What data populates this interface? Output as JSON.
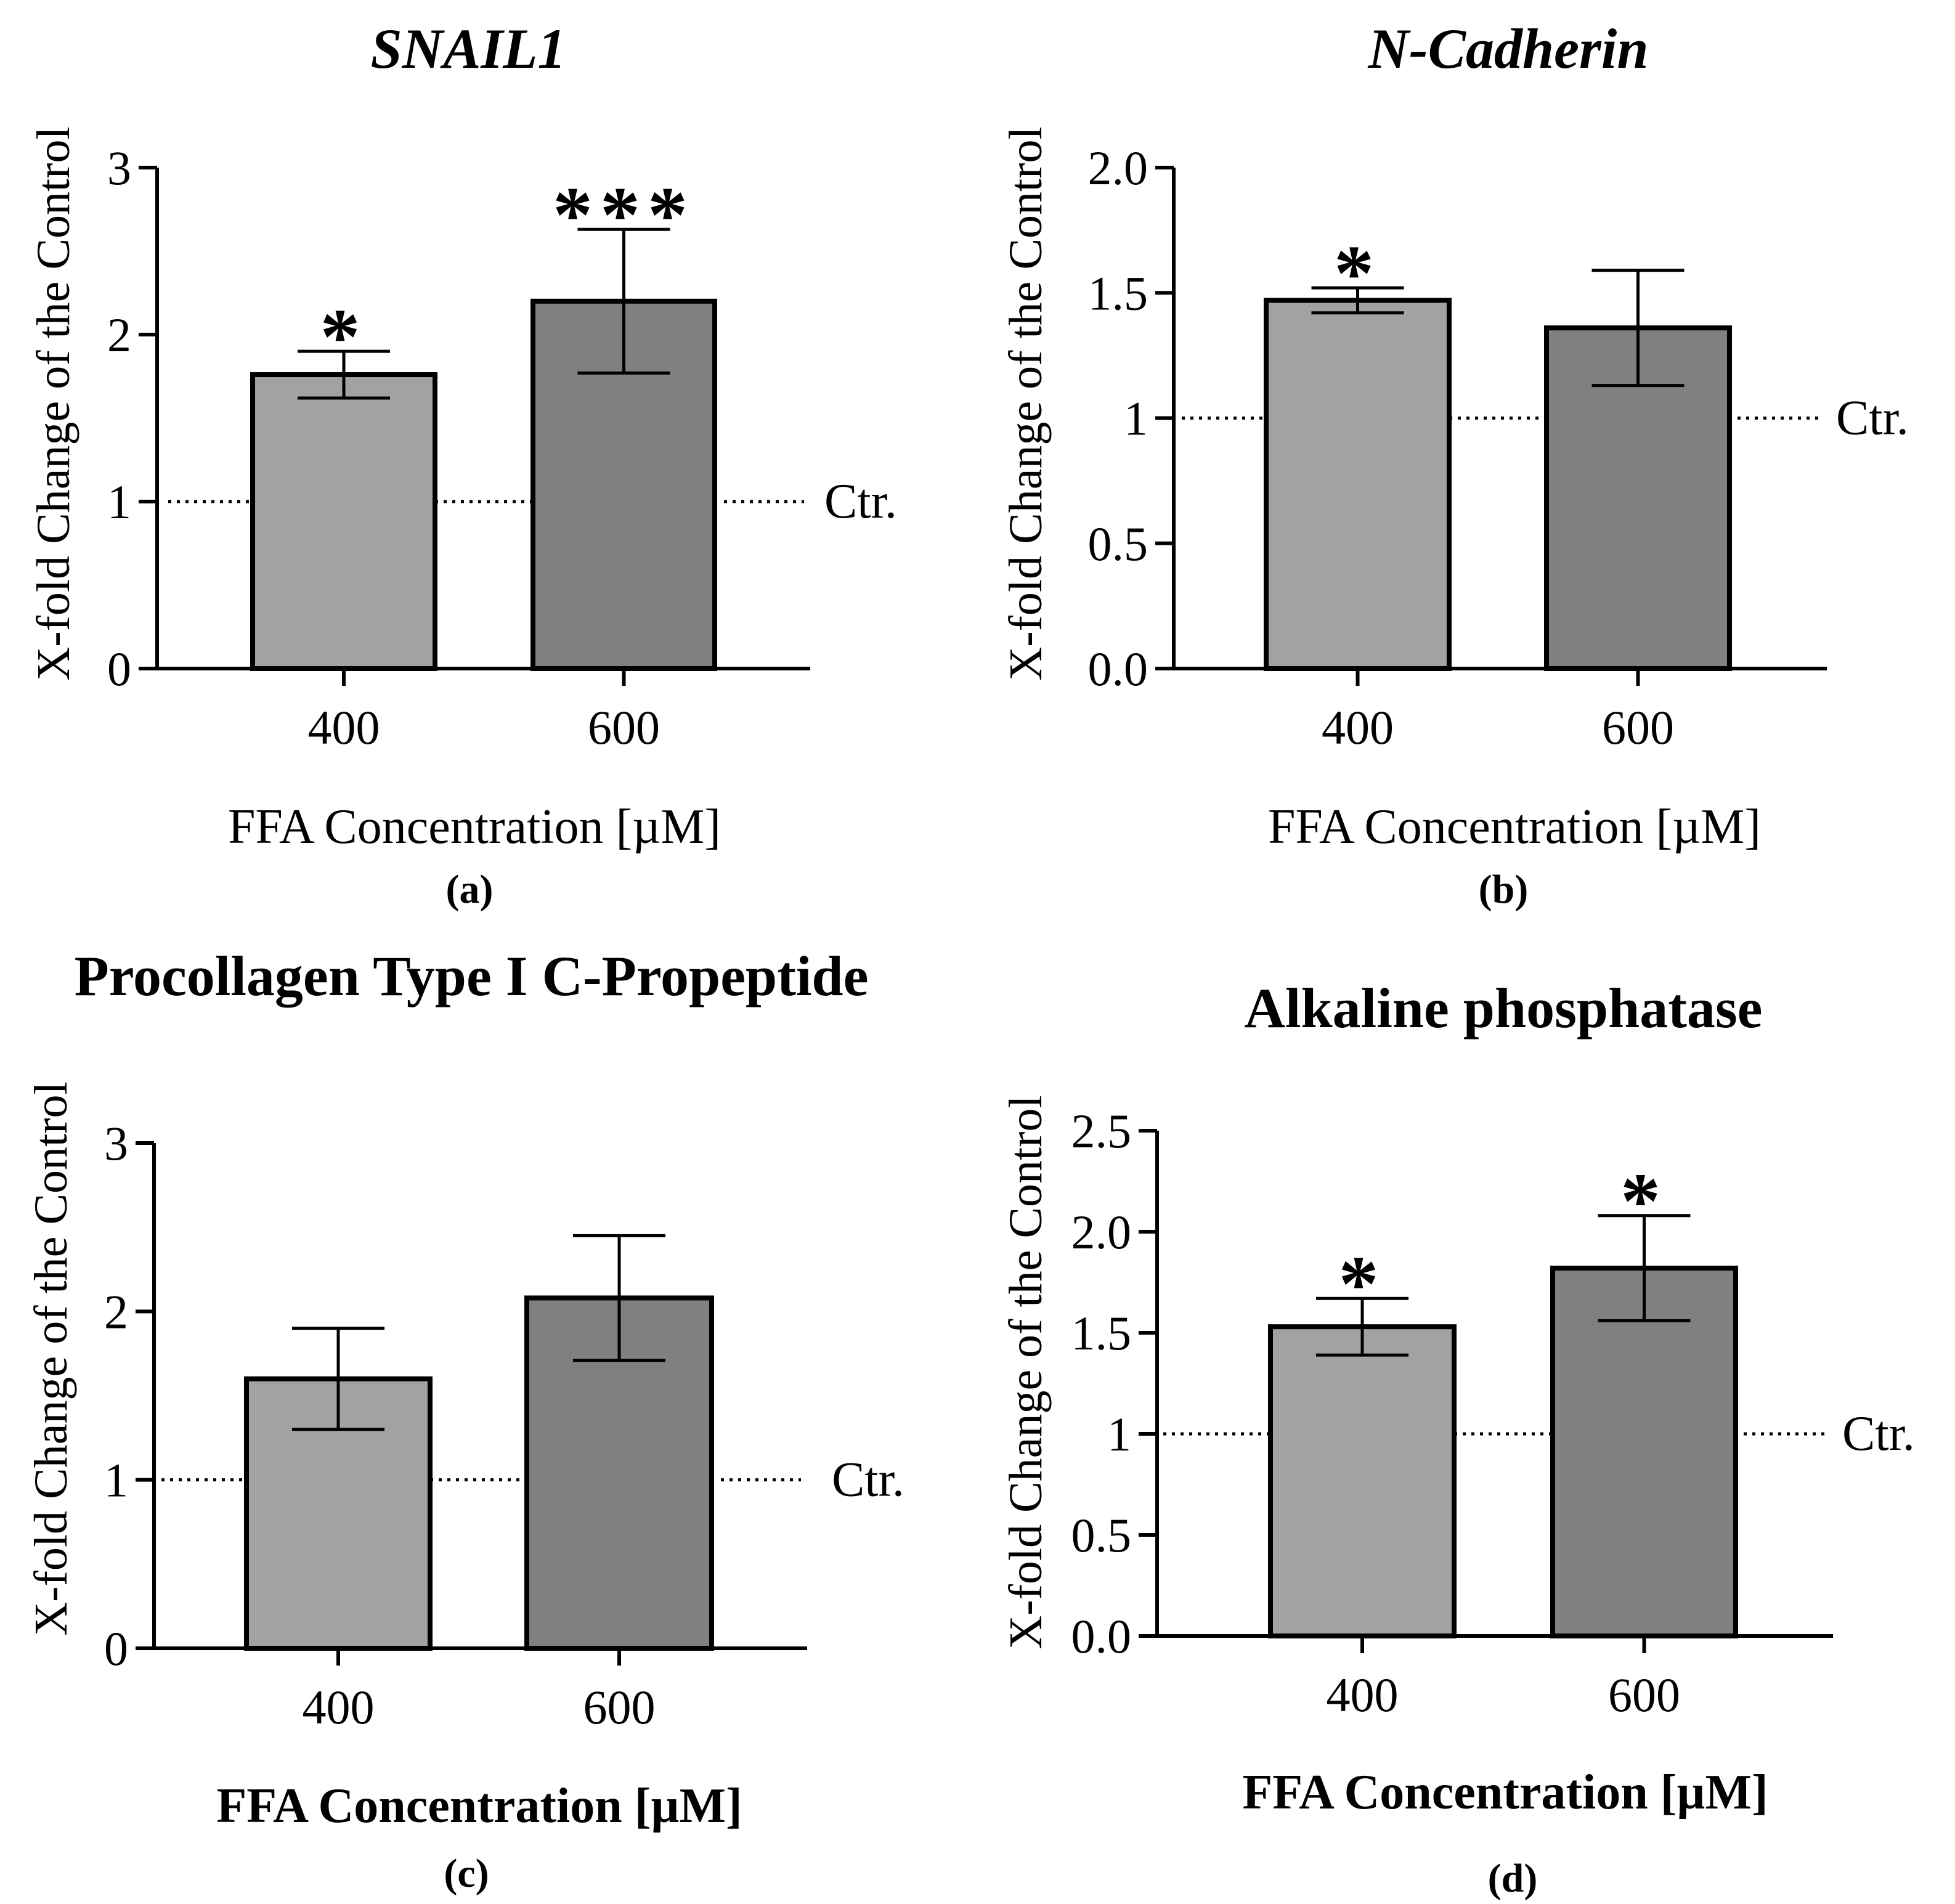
{
  "chart_data": [
    {
      "type": "bar",
      "panel": "(a)",
      "title": "SNAIL1",
      "title_style": "bold-italic",
      "xlabel": "FFA Concentration [µM]",
      "ylabel": "X-fold Change of the Control",
      "categories": [
        "400",
        "600"
      ],
      "values": [
        1.76,
        2.2
      ],
      "errors": [
        0.14,
        0.43
      ],
      "significance": [
        "*",
        "***"
      ],
      "ylim": [
        0,
        3
      ],
      "yticks": [
        0,
        1,
        2,
        3
      ],
      "ytick_labels": [
        "0",
        "1",
        "2",
        "3"
      ],
      "reference_line": {
        "value": 1,
        "label": "Ctr."
      },
      "colors": [
        "#a2a2a2",
        "#808080"
      ]
    },
    {
      "type": "bar",
      "panel": "(b)",
      "title": "N-Cadherin",
      "title_style": "bold-italic",
      "xlabel": "FFA Concentration [µM]",
      "ylabel": "X-fold Change of the Control",
      "categories": [
        "400",
        "600"
      ],
      "values": [
        1.47,
        1.36
      ],
      "errors": [
        0.05,
        0.23
      ],
      "significance": [
        "*",
        ""
      ],
      "ylim": [
        0,
        2
      ],
      "yticks": [
        0,
        0.5,
        1,
        1.5,
        2
      ],
      "ytick_labels": [
        "0.0",
        "0.5",
        "1",
        "1.5",
        "2.0"
      ],
      "reference_line": {
        "value": 1,
        "label": "Ctr."
      },
      "colors": [
        "#a2a2a2",
        "#808080"
      ]
    },
    {
      "type": "bar",
      "panel": "(c)",
      "title": "Procollagen Type I C-Propeptide",
      "title_style": "bold",
      "xlabel": "FFA Concentration [µM]",
      "ylabel": "X-fold Change of the Control",
      "categories": [
        "400",
        "600"
      ],
      "values": [
        1.6,
        2.08
      ],
      "errors": [
        0.3,
        0.37
      ],
      "significance": [
        "",
        ""
      ],
      "ylim": [
        0,
        3
      ],
      "yticks": [
        0,
        1,
        2,
        3
      ],
      "ytick_labels": [
        "0",
        "1",
        "2",
        "3"
      ],
      "reference_line": {
        "value": 1,
        "label": "Ctr."
      },
      "colors": [
        "#a2a2a2",
        "#808080"
      ]
    },
    {
      "type": "bar",
      "panel": "(d)",
      "title": "Alkaline phosphatase",
      "title_style": "bold",
      "xlabel": "FFA Concentration [µM]",
      "ylabel": "X-fold Change of the Control",
      "categories": [
        "400",
        "600"
      ],
      "values": [
        1.53,
        1.82
      ],
      "errors": [
        0.14,
        0.26
      ],
      "significance": [
        "*",
        "*"
      ],
      "ylim": [
        0,
        2.5
      ],
      "yticks": [
        0,
        0.5,
        1,
        1.5,
        2,
        2.5
      ],
      "ytick_labels": [
        "0.0",
        "0.5",
        "1",
        "1.5",
        "2.0",
        "2.5"
      ],
      "reference_line": {
        "value": 1,
        "label": "Ctr."
      },
      "colors": [
        "#a2a2a2",
        "#808080"
      ]
    }
  ]
}
